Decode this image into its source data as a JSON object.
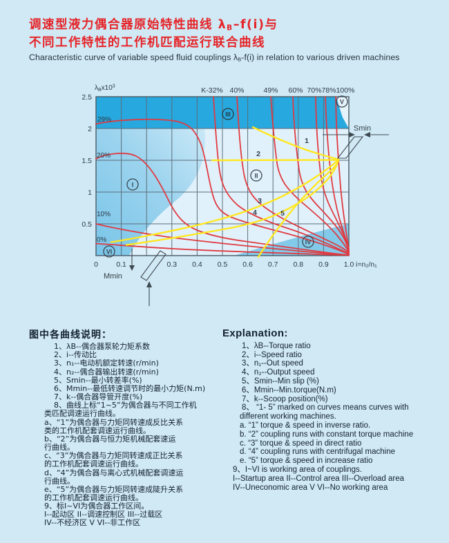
{
  "title": {
    "zh1_pre": "调速型液力偶合器原始特性曲线 λ",
    "zh1_sub": "B",
    "zh1_post": "–f(i)与",
    "zh2": "不同工作特性的工作机匹配运行联合曲线",
    "en_pre": "Characteristic curve of variable speed fluid couplings λ",
    "en_sub": "B",
    "en_post": "-f(i) in relation to various driven machines"
  },
  "chart": {
    "y_label_pre": "λ",
    "y_label_sub": "B",
    "y_label_x": "x10",
    "y_label_sup": "3",
    "x_axis_label": "i=n₂/n₁",
    "yticks": [
      "2.5",
      "2",
      "1.5",
      "1",
      "0.5"
    ],
    "xticks": [
      "0",
      "0.1",
      "0.3",
      "0.4",
      "0.5",
      "0.6",
      "0.7",
      "0.8",
      "0.9",
      "1.0"
    ],
    "k_labels": [
      "K-32%",
      "40%",
      "49%",
      "60%",
      "70%78%100%"
    ],
    "left_labels": [
      "29%",
      "20%",
      "10%",
      "0%"
    ],
    "curve_labels": [
      "1",
      "2",
      "3",
      "4",
      "5"
    ],
    "regions": [
      "I",
      "II",
      "III",
      "IV",
      "V",
      "VI"
    ],
    "smin": "Smin",
    "mmin": "Mmin"
  },
  "chart_data": {
    "type": "line",
    "x": {
      "label": "i=n₂/n₁",
      "min": 0,
      "max": 1.0,
      "ticks": [
        0,
        0.1,
        0.3,
        0.4,
        0.5,
        0.6,
        0.7,
        0.8,
        0.9,
        1.0
      ]
    },
    "y": {
      "label": "λB x10³",
      "min": 0,
      "max": 2.5,
      "ticks": [
        0,
        0.5,
        1,
        1.5,
        2,
        2.5
      ]
    },
    "series": [
      {
        "name": "K=0%",
        "color": "#e03a40",
        "points": [
          [
            0,
            0.19
          ],
          [
            0.2,
            0.14
          ],
          [
            0.4,
            0.09
          ],
          [
            0.6,
            0.06
          ],
          [
            0.8,
            0.03
          ],
          [
            1,
            0
          ]
        ]
      },
      {
        "name": "K=10%",
        "color": "#e03a40",
        "points": [
          [
            0,
            0.5
          ],
          [
            0.12,
            0.4
          ],
          [
            0.3,
            0.29
          ],
          [
            0.5,
            0.19
          ],
          [
            0.7,
            0.11
          ],
          [
            0.9,
            0.04
          ],
          [
            1,
            0
          ]
        ]
      },
      {
        "name": "K=20%",
        "color": "#e03a40",
        "points": [
          [
            0,
            1.52
          ],
          [
            0.12,
            1.61
          ],
          [
            0.2,
            1.52
          ],
          [
            0.3,
            1.0
          ],
          [
            0.36,
            0.5
          ],
          [
            0.45,
            0.31
          ],
          [
            0.6,
            0.22
          ],
          [
            0.8,
            0.1
          ],
          [
            1,
            0
          ]
        ]
      },
      {
        "name": "K=29%",
        "color": "#e03a40",
        "points": [
          [
            0,
            2.07
          ],
          [
            0.25,
            2.15
          ],
          [
            0.4,
            1.9
          ],
          [
            0.44,
            1.2
          ],
          [
            0.5,
            0.68
          ],
          [
            0.6,
            0.52
          ],
          [
            0.8,
            0.24
          ],
          [
            1,
            0
          ]
        ]
      },
      {
        "name": "K=32%",
        "color": "#e03a40",
        "points": [
          [
            0.465,
            2.5
          ],
          [
            0.48,
            1.6
          ],
          [
            0.5,
            1.1
          ],
          [
            0.56,
            0.76
          ],
          [
            0.72,
            0.47
          ],
          [
            0.85,
            0.28
          ],
          [
            1,
            0
          ]
        ]
      },
      {
        "name": "K=40%",
        "color": "#e03a40",
        "points": [
          [
            0.558,
            2.5
          ],
          [
            0.575,
            1.5
          ],
          [
            0.6,
            1.05
          ],
          [
            0.66,
            0.8
          ],
          [
            0.8,
            0.48
          ],
          [
            0.9,
            0.28
          ],
          [
            1,
            0
          ]
        ]
      },
      {
        "name": "K=49%",
        "color": "#e03a40",
        "points": [
          [
            0.69,
            2.5
          ],
          [
            0.71,
            1.55
          ],
          [
            0.74,
            1.15
          ],
          [
            0.82,
            0.82
          ],
          [
            0.94,
            0.4
          ],
          [
            1,
            0
          ]
        ]
      },
      {
        "name": "K=60%",
        "color": "#e03a40",
        "points": [
          [
            0.78,
            2.5
          ],
          [
            0.795,
            1.5
          ],
          [
            0.83,
            1.05
          ],
          [
            0.9,
            0.68
          ],
          [
            0.95,
            0.45
          ],
          [
            1,
            0
          ]
        ]
      },
      {
        "name": "K=70%",
        "color": "#e03a40",
        "points": [
          [
            0.868,
            2.5
          ],
          [
            0.882,
            1.5
          ],
          [
            0.9,
            1.0
          ],
          [
            0.95,
            0.55
          ],
          [
            1,
            0
          ]
        ]
      },
      {
        "name": "K=78%",
        "color": "#e03a40",
        "points": [
          [
            0.908,
            2.5
          ],
          [
            0.92,
            1.45
          ],
          [
            0.94,
            0.85
          ],
          [
            0.97,
            0.4
          ],
          [
            1,
            0
          ]
        ]
      },
      {
        "name": "K=100%",
        "color": "#e03a40",
        "points": [
          [
            0.947,
            2.5
          ],
          [
            0.958,
            1.4
          ],
          [
            0.97,
            0.85
          ],
          [
            0.99,
            0.35
          ],
          [
            1,
            0
          ]
        ]
      }
    ],
    "load_curves": [
      {
        "name": "1",
        "color": "#ffe71e",
        "points": [
          [
            0.62,
            2.02
          ],
          [
            0.75,
            1.78
          ],
          [
            0.87,
            1.58
          ],
          [
            0.955,
            1.5
          ]
        ]
      },
      {
        "name": "2",
        "color": "#ffe71e",
        "points": [
          [
            0.46,
            1.5
          ],
          [
            0.955,
            1.5
          ]
        ]
      },
      {
        "name": "3",
        "color": "#ffe71e",
        "points": [
          [
            0.06,
            0.21
          ],
          [
            0.35,
            0.43
          ],
          [
            0.63,
            0.75
          ],
          [
            0.85,
            1.17
          ],
          [
            0.955,
            1.5
          ]
        ]
      },
      {
        "name": "4",
        "color": "#ffe71e",
        "points": [
          [
            0.12,
            0.17
          ],
          [
            0.5,
            0.42
          ],
          [
            0.78,
            0.78
          ],
          [
            0.94,
            1.3
          ],
          [
            0.955,
            1.5
          ]
        ]
      },
      {
        "name": "5",
        "color": "#ffe71e",
        "points": [
          [
            0.645,
            0
          ],
          [
            0.78,
            0.72
          ],
          [
            0.92,
            1.3
          ],
          [
            0.955,
            1.5
          ]
        ]
      }
    ],
    "regions": [
      {
        "id": "I",
        "zh": "起动区",
        "en": "Startup area"
      },
      {
        "id": "II",
        "zh": "调速控制区",
        "en": "Control area"
      },
      {
        "id": "III",
        "zh": "过载区",
        "en": "Overload area"
      },
      {
        "id": "IV",
        "zh": "不经济区",
        "en": "Uneconomic area"
      },
      {
        "id": "V VI",
        "zh": "非工作区",
        "en": "No working area"
      }
    ],
    "annotations": [
      "Smin",
      "Mmin"
    ],
    "legend_position": "none",
    "grid": true
  },
  "legend_zh": {
    "header": "图中各曲线说明：",
    "lines": [
      {
        "t": "1、λB--偶合器泵轮力矩系数",
        "ind": "n"
      },
      {
        "t": "2、i--传动比",
        "ind": "n"
      },
      {
        "t": "3、n₁--电动机额定转速(r/min)",
        "ind": "n"
      },
      {
        "t": "4、n₂--偶合器输出转速(r/min)",
        "ind": "n"
      },
      {
        "t": "5、Smin--最小转差率(%)",
        "ind": "n"
      },
      {
        "t": "6、Mmin--最低转速调节时的最小力矩(N.m)",
        "ind": "n"
      },
      {
        "t": "7、k--偶合器导管开度(%)",
        "ind": "n"
      },
      {
        "t": "8、曲线上标“1~5”为偶合器与不同工作机",
        "ind": "n"
      },
      {
        "t": "类匹配调速运行曲线。",
        "ind": "c"
      },
      {
        "t": "a、“1”为偶合器与力矩同转速成反比关系",
        "ind": "c"
      },
      {
        "t": "类的工作机配套调速运行曲线。",
        "ind": "c"
      },
      {
        "t": "b、“2”为偶合器与恒力矩机械配套速运",
        "ind": "c"
      },
      {
        "t": "行曲线。",
        "ind": "c"
      },
      {
        "t": "c、“3”为偶合器与力矩同转速成正比关系",
        "ind": "c"
      },
      {
        "t": "的工作机配套调速运行曲线。",
        "ind": "c"
      },
      {
        "t": "d、“4”为偶合器与离心式机械配套调速运",
        "ind": "c"
      },
      {
        "t": "行曲线。",
        "ind": "c"
      },
      {
        "t": "e、“5”为偶合器与力矩同转速成陡升关系",
        "ind": "c"
      },
      {
        "t": "的工作机配套调速运行曲线。",
        "ind": "c"
      },
      {
        "t": "9、标I~VI为偶合器工作区间。",
        "ind": "c"
      },
      {
        "t": "I--起动区  II--调速控制区  III--过载区",
        "ind": "c"
      },
      {
        "t": "IV--不经济区  V VI--非工作区",
        "ind": "c"
      }
    ]
  },
  "legend_en": {
    "header": "Explanation:",
    "lines": [
      {
        "t": "1、λB--Torque ratio",
        "ind": "n"
      },
      {
        "t": "2、i--Speed ratio",
        "ind": "n"
      },
      {
        "t": "3、n₁--Out speed",
        "ind": "n"
      },
      {
        "t": "4、n₂--Output speed",
        "ind": "n"
      },
      {
        "t": "5、Smin--Min slip (%)",
        "ind": "n"
      },
      {
        "t": "6、Mmin--Min.torque(N.m)",
        "ind": "n"
      },
      {
        "t": "7、k--Scoop position(%)",
        "ind": "n"
      },
      {
        "t": "8、 “1- 5” marked on curves means curves with",
        "ind": "n"
      },
      {
        "t": "different working machines.",
        "ind": "a"
      },
      {
        "t": "a. “1” torque & speed in inverse ratio.",
        "ind": "a"
      },
      {
        "t": "b. “2” coupling runs with constant torque machine",
        "ind": "a"
      },
      {
        "t": "c. “3” torque & speed in direct ratio",
        "ind": "a"
      },
      {
        "t": "d. “4” coupling runs with centrifugal machine",
        "ind": "a"
      },
      {
        "t": "e.  “5” torque & speed in increase ratio",
        "ind": "a"
      },
      {
        "t": "9、I~VI is working area of couplings.",
        "ind": "r"
      },
      {
        "t": "I--Startup area   II--Control area   III--Overload area",
        "ind": "r"
      },
      {
        "t": "IV--Uneconomic area    V VI--No working area",
        "ind": "r"
      }
    ]
  }
}
